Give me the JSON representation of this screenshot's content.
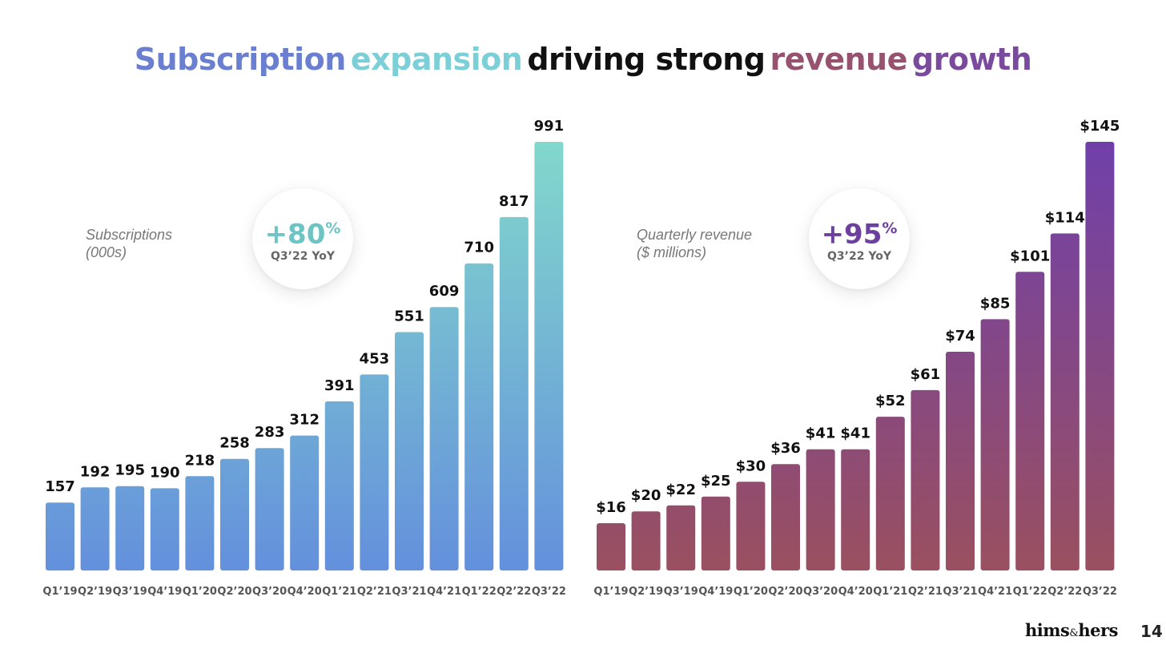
{
  "title": {
    "part1": "Subscription",
    "part2": "expansion",
    "part3": "driving strong",
    "part4": "revenue",
    "part5": "growth",
    "colors": [
      "#6a7fd0",
      "#7ccfd6",
      "#111111",
      "#96526e",
      "#7a4a9c"
    ]
  },
  "left_panel": {
    "label_line1": "Subscriptions",
    "label_line2": "(000s)",
    "badge_value": "+80",
    "badge_unit": "%",
    "badge_sub": "Q3’22 YoY",
    "badge_color": "#6cc4c4"
  },
  "right_panel": {
    "label_line1": "Quarterly revenue",
    "label_line2": "($ millions)",
    "badge_value": "+95",
    "badge_unit": "%",
    "badge_sub": "Q3’22 YoY",
    "badge_color": "#6d3f9e"
  },
  "footer": {
    "brand_left": "hims",
    "brand_amp": "&",
    "brand_right": "hers",
    "page_number": "14"
  },
  "chart_data": [
    {
      "type": "bar",
      "title": "",
      "categories": [
        "Q1’19",
        "Q2’19",
        "Q3’19",
        "Q4’19",
        "Q1’20",
        "Q2’20",
        "Q3’20",
        "Q4’20",
        "Q1’21",
        "Q2’21",
        "Q3’21",
        "Q4’21",
        "Q1’22",
        "Q2’22",
        "Q3’22"
      ],
      "values": [
        157,
        192,
        195,
        190,
        218,
        258,
        283,
        312,
        391,
        453,
        551,
        609,
        710,
        817,
        991
      ],
      "value_labels": [
        "157",
        "192",
        "195",
        "190",
        "218",
        "258",
        "283",
        "312",
        "391",
        "453",
        "551",
        "609",
        "710",
        "817",
        "991"
      ],
      "ylim": [
        0,
        991
      ],
      "grid": false,
      "colors": {
        "top": "#82d8cc",
        "bottom": "#6490dc",
        "light": "#72c8d6"
      }
    },
    {
      "type": "bar",
      "title": "",
      "categories": [
        "Q1’19",
        "Q2’19",
        "Q3’19",
        "Q4’19",
        "Q1’20",
        "Q2’20",
        "Q3’20",
        "Q4’20",
        "Q1’21",
        "Q2’21",
        "Q3’21",
        "Q4’21",
        "Q1’22",
        "Q2’22",
        "Q3’22"
      ],
      "values": [
        16,
        20,
        22,
        25,
        30,
        36,
        41,
        41,
        52,
        61,
        74,
        85,
        101,
        114,
        145
      ],
      "value_labels": [
        "$16",
        "$20",
        "$22",
        "$25",
        "$30",
        "$36",
        "$41",
        "$41",
        "$52",
        "$61",
        "$74",
        "$85",
        "$101",
        "$114",
        "$145"
      ],
      "ylim": [
        0,
        145
      ],
      "grid": false,
      "colors": {
        "top": "#7040aa",
        "bottom": "#9a5060"
      }
    }
  ]
}
